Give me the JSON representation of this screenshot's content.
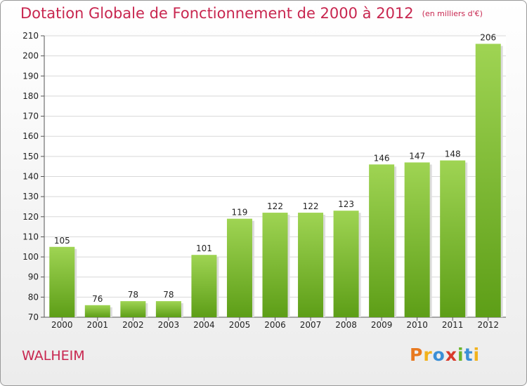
{
  "title": "Dotation Globale de Fonctionnement de 2000 à 2012",
  "subtitle": "(en milliers d'€)",
  "commune": "WALHEIM",
  "logo": "Proxiti",
  "colors": {
    "title": "#c8264f",
    "bar_top": "#9fd453",
    "bar_bottom": "#5d9e17",
    "grid": "#d8d8d8"
  },
  "chart_data": {
    "type": "bar",
    "categories": [
      "2000",
      "2001",
      "2002",
      "2003",
      "2004",
      "2005",
      "2006",
      "2007",
      "2008",
      "2009",
      "2010",
      "2011",
      "2012"
    ],
    "values": [
      105,
      76,
      78,
      78,
      101,
      119,
      122,
      122,
      123,
      146,
      147,
      148,
      206
    ],
    "ylim": [
      70,
      210
    ],
    "yticks": [
      70,
      80,
      90,
      100,
      110,
      120,
      130,
      140,
      150,
      160,
      170,
      180,
      190,
      200,
      210
    ],
    "grid": true,
    "data_labels": true
  }
}
